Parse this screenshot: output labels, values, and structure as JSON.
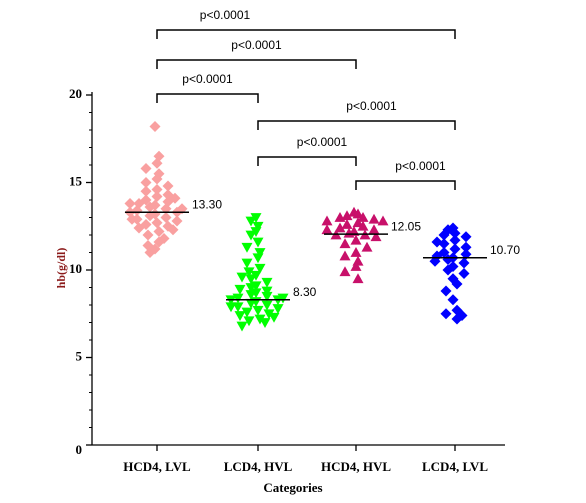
{
  "chart_data": {
    "type": "strip",
    "x_label": "Categories",
    "y_label": "hb(g/dl)",
    "categories": [
      "HCD4, LVL",
      "LCD4, HVL",
      "HCD4, HVL",
      "LCD4, LVL"
    ],
    "ylim": [
      0,
      20
    ],
    "yticks": [
      0,
      5,
      10,
      15,
      20
    ],
    "series": [
      {
        "name": "HCD4, LVL",
        "color": "#f9a0a0",
        "marker": "diamond",
        "median": 13.3,
        "median_label": "13.30",
        "values": [
          18.2,
          16.5,
          16.1,
          15.8,
          15.5,
          15.2,
          15,
          14.8,
          14.6,
          14.5,
          14.3,
          14.2,
          14,
          13.9,
          13.8,
          13.7,
          13.6,
          13.5,
          13.4,
          13.3,
          13.3,
          13.2,
          13.1,
          13,
          12.9,
          12.8,
          12.7,
          12.6,
          12.5,
          12.4,
          12.3,
          12.2,
          12,
          11.8,
          11.6,
          11.4,
          11.2,
          11,
          14.1,
          13.5,
          12.9,
          13.8
        ]
      },
      {
        "name": "LCD4, HVL",
        "color": "#00ff00",
        "marker": "triangle-down",
        "median": 8.3,
        "median_label": "8.30",
        "values": [
          13,
          12.8,
          12.5,
          12.2,
          12,
          11.6,
          11.3,
          11,
          10.7,
          10.4,
          10.1,
          9.9,
          9.7,
          9.5,
          9.3,
          9.1,
          9,
          8.8,
          8.7,
          8.6,
          8.5,
          8.4,
          8.3,
          8.3,
          8.2,
          8.1,
          8,
          7.9,
          7.8,
          7.7,
          7.6,
          7.5,
          7.4,
          7.3,
          7.2,
          7.1,
          7,
          6.8,
          8.9,
          8.4,
          9.6,
          7.9
        ]
      },
      {
        "name": "HCD4, HVL",
        "color": "#c8106a",
        "marker": "triangle-up",
        "median": 12.05,
        "median_label": "12.05",
        "values": [
          13.3,
          13.2,
          13.1,
          13,
          13,
          12.9,
          12.8,
          12.7,
          12.6,
          12.5,
          12.4,
          12.3,
          12.2,
          12.1,
          12,
          12,
          11.9,
          11.7,
          11.5,
          11.3,
          11,
          10.8,
          10.5,
          10.2,
          9.9,
          9.5,
          12.8,
          12.3
        ]
      },
      {
        "name": "LCD4, LVL",
        "color": "#0000ff",
        "marker": "diamond",
        "median": 10.7,
        "median_label": "10.70",
        "values": [
          12.4,
          12.3,
          12.1,
          12,
          11.9,
          11.7,
          11.5,
          11.3,
          11.2,
          11,
          10.9,
          10.8,
          10.7,
          10.6,
          10.4,
          10.2,
          10,
          9.8,
          9.5,
          9.2,
          8.8,
          8.3,
          7.7,
          7.5,
          7.4,
          7.2,
          11.6,
          10.5
        ]
      }
    ],
    "comparisons": [
      {
        "pair": [
          "HCD4, LVL",
          "LCD4, LVL"
        ],
        "label": "p<0.0001"
      },
      {
        "pair": [
          "HCD4, LVL",
          "HCD4, HVL"
        ],
        "label": "p<0.0001"
      },
      {
        "pair": [
          "HCD4, LVL",
          "LCD4, HVL"
        ],
        "label": "p<0.0001"
      },
      {
        "pair": [
          "LCD4, HVL",
          "LCD4, LVL"
        ],
        "label": "p<0.0001"
      },
      {
        "pair": [
          "LCD4, HVL",
          "HCD4, HVL"
        ],
        "label": "p<0.0001"
      },
      {
        "pair": [
          "HCD4, HVL",
          "LCD4, LVL"
        ],
        "label": "p<0.0001"
      }
    ]
  }
}
